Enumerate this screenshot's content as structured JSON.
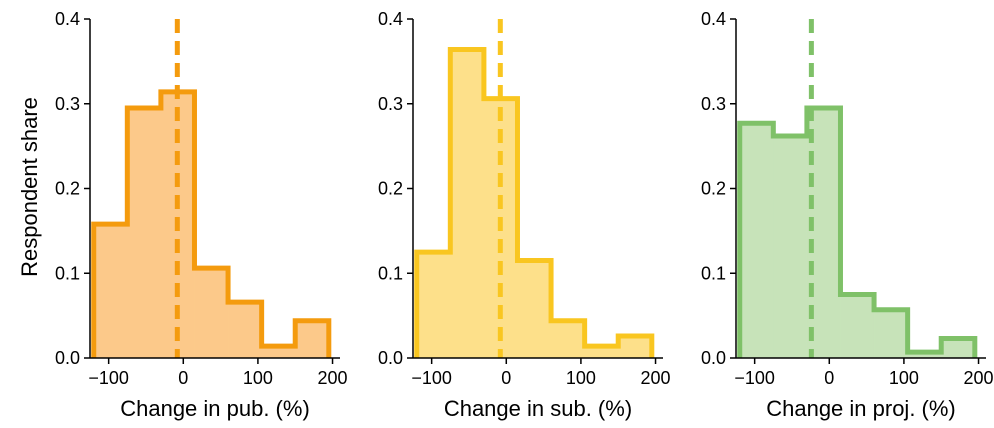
{
  "figure": {
    "ylabel": "Respondent share"
  },
  "chart_data": [
    {
      "type": "bar",
      "style": "step-histogram",
      "xlabel": "Change in pub. (%)",
      "ylabel": "Respondent share",
      "bin_edges": [
        -120,
        -75,
        -30,
        15,
        60,
        105,
        150,
        195
      ],
      "values": [
        0.158,
        0.295,
        0.314,
        0.106,
        0.066,
        0.014,
        0.044
      ],
      "median_line": -8,
      "xlim": [
        -125,
        210
      ],
      "ylim": [
        0,
        0.4
      ],
      "xticks": [
        -100,
        0,
        100,
        200
      ],
      "yticks": [
        0.0,
        0.1,
        0.2,
        0.3,
        0.4
      ],
      "colors": {
        "line": "#f49b0e",
        "fill": "#fcc98a"
      }
    },
    {
      "type": "bar",
      "style": "step-histogram",
      "xlabel": "Change in sub. (%)",
      "ylabel": "",
      "bin_edges": [
        -120,
        -75,
        -30,
        15,
        60,
        105,
        150,
        195
      ],
      "values": [
        0.125,
        0.364,
        0.306,
        0.115,
        0.044,
        0.014,
        0.026
      ],
      "median_line": -8,
      "xlim": [
        -125,
        210
      ],
      "ylim": [
        0,
        0.4
      ],
      "xticks": [
        -100,
        0,
        100,
        200
      ],
      "yticks": [
        0.0,
        0.1,
        0.2,
        0.3,
        0.4
      ],
      "colors": {
        "line": "#f9c620",
        "fill": "#fde08a"
      }
    },
    {
      "type": "bar",
      "style": "step-histogram",
      "xlabel": "Change in proj. (%)",
      "ylabel": "",
      "bin_edges": [
        -120,
        -75,
        -30,
        15,
        60,
        105,
        150,
        195
      ],
      "values": [
        0.277,
        0.262,
        0.295,
        0.075,
        0.057,
        0.007,
        0.023
      ],
      "median_line": -24,
      "xlim": [
        -125,
        210
      ],
      "ylim": [
        0,
        0.4
      ],
      "xticks": [
        -100,
        0,
        100,
        200
      ],
      "yticks": [
        0.0,
        0.1,
        0.2,
        0.3,
        0.4
      ],
      "colors": {
        "line": "#7fc168",
        "fill": "#c7e3b9"
      }
    }
  ]
}
